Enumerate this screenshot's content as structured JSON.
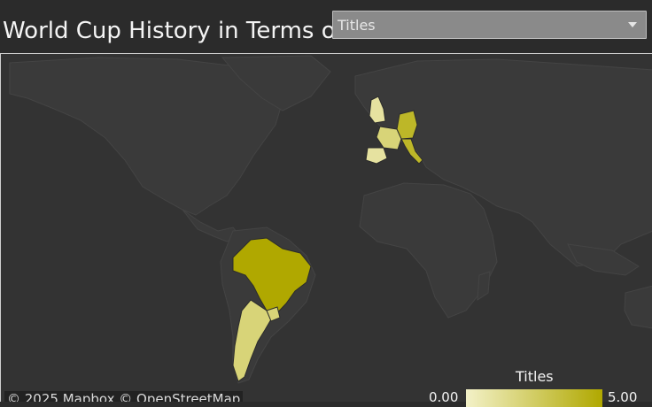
{
  "header": {
    "title": "World Cup History in Terms of",
    "metric_select": {
      "selected": "Titles"
    }
  },
  "map": {
    "attribution": "© 2025 Mapbox © OpenStreetMap",
    "base_color": "#333333",
    "land_color": "#3a3a3a",
    "legend": {
      "title": "Titles",
      "min_label": "0.00",
      "max_label": "5.00",
      "min_value": 0,
      "max_value": 5,
      "color_low": "#f3f1c8",
      "color_high": "#b0a800"
    },
    "highlighted_countries": [
      {
        "id": "brazil",
        "name": "Brazil",
        "titles": 5
      },
      {
        "id": "germany",
        "name": "Germany",
        "titles": 4
      },
      {
        "id": "italy",
        "name": "Italy",
        "titles": 4
      },
      {
        "id": "argentina",
        "name": "Argentina",
        "titles": 2
      },
      {
        "id": "uruguay",
        "name": "Uruguay",
        "titles": 2
      },
      {
        "id": "france",
        "name": "France",
        "titles": 2
      },
      {
        "id": "england",
        "name": "England",
        "titles": 1
      },
      {
        "id": "spain",
        "name": "Spain",
        "titles": 1
      }
    ]
  }
}
